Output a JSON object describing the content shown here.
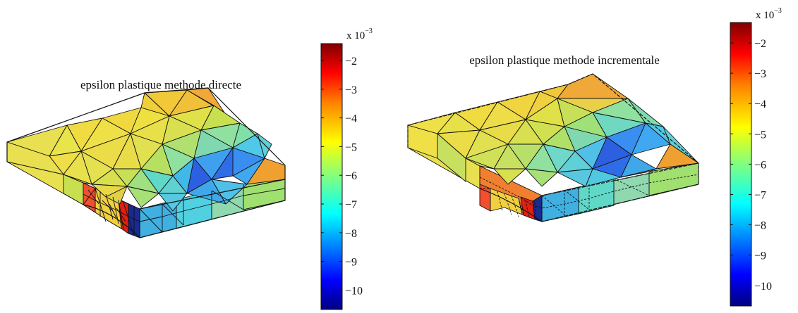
{
  "plots": [
    {
      "id": "left",
      "title": "epsilon plastique methode directe",
      "colorbar": {
        "multiplier_base": "x 10",
        "multiplier_exponent": "−3",
        "ticks": [
          "−2",
          "−3",
          "−4",
          "−5",
          "−6",
          "−7",
          "−8",
          "−9",
          "−10"
        ]
      }
    },
    {
      "id": "right",
      "title": "epsilon plastique methode incrementale",
      "colorbar": {
        "multiplier_base": "x 10",
        "multiplier_exponent": "−3",
        "ticks": [
          "−2",
          "−3",
          "−4",
          "−5",
          "−6",
          "−7",
          "−8",
          "−9",
          "−10"
        ]
      }
    }
  ],
  "colormap": "jet",
  "palette": {
    "dark_red": "#800000",
    "red": "#e01010",
    "orange": "#f5a030",
    "yellow": "#f0e040",
    "yellow_green": "#c8e050",
    "green": "#80e090",
    "cyan": "#50e0e0",
    "sky": "#30a0f0",
    "blue": "#2060e0",
    "dark_blue": "#000080"
  }
}
